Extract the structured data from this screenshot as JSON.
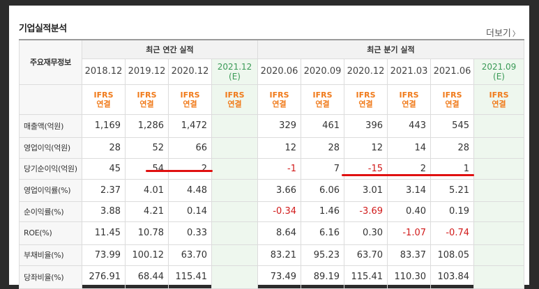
{
  "section_title": "기업실적분석",
  "more_label": "더보기",
  "header": {
    "row_label": "주요재무정보",
    "annual_group": "최근 연간 실적",
    "quarter_group": "최근 분기 실적",
    "annual_periods": [
      "2018.12",
      "2019.12",
      "2020.12"
    ],
    "annual_estimate": {
      "period": "2021.12",
      "tag": "(E)"
    },
    "quarter_periods": [
      "2020.06",
      "2020.09",
      "2020.12",
      "2021.03",
      "2021.06"
    ],
    "quarter_estimate": {
      "period": "2021.09",
      "tag": "(E)"
    },
    "std_line1": "IFRS",
    "std_line2": "연결"
  },
  "rows": [
    {
      "label": "매출액(억원)",
      "annual": [
        "1,169",
        "1,286",
        "1,472"
      ],
      "annual_est": "",
      "quarter": [
        "329",
        "461",
        "396",
        "443",
        "545"
      ],
      "quarter_est": ""
    },
    {
      "label": "영업이익(억원)",
      "annual": [
        "28",
        "52",
        "66"
      ],
      "annual_est": "",
      "quarter": [
        "12",
        "28",
        "12",
        "14",
        "28"
      ],
      "quarter_est": ""
    },
    {
      "label": "당기순이익(억원)",
      "annual": [
        "45",
        "54",
        "2"
      ],
      "annual_est": "",
      "quarter": [
        "-1",
        "7",
        "-15",
        "2",
        "1"
      ],
      "quarter_est": ""
    },
    {
      "label": "영업이익률(%)",
      "annual": [
        "2.37",
        "4.01",
        "4.48"
      ],
      "annual_est": "",
      "quarter": [
        "3.66",
        "6.06",
        "3.01",
        "3.14",
        "5.21"
      ],
      "quarter_est": ""
    },
    {
      "label": "순이익률(%)",
      "annual": [
        "3.88",
        "4.21",
        "0.14"
      ],
      "annual_est": "",
      "quarter": [
        "-0.34",
        "1.46",
        "-3.69",
        "0.40",
        "0.19"
      ],
      "quarter_est": ""
    },
    {
      "label": "ROE(%)",
      "annual": [
        "11.45",
        "10.78",
        "0.33"
      ],
      "annual_est": "",
      "quarter": [
        "8.64",
        "6.16",
        "0.30",
        "-1.07",
        "-0.74"
      ],
      "quarter_est": ""
    },
    {
      "label": "부채비율(%)",
      "annual": [
        "73.99",
        "100.12",
        "63.70"
      ],
      "annual_est": "",
      "quarter": [
        "83.21",
        "95.23",
        "63.70",
        "83.37",
        "108.05"
      ],
      "quarter_est": ""
    },
    {
      "label": "당좌비율(%)",
      "annual": [
        "276.91",
        "68.44",
        "115.41"
      ],
      "annual_est": "",
      "quarter": [
        "73.49",
        "89.19",
        "115.41",
        "110.30",
        "103.84"
      ],
      "quarter_est": ""
    }
  ],
  "colors": {
    "negative": "#d11a1a",
    "ifrs": "#f07a1a",
    "estimate": "#3a9a56",
    "annotation": "#e01010"
  }
}
